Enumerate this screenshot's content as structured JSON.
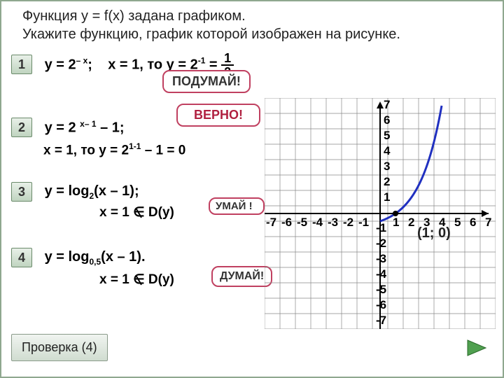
{
  "header": {
    "line1": "Функция   у = f(x)  задана графиком.",
    "line2": "Укажите функцию, график которой изображен на рисунке."
  },
  "options": {
    "o1": {
      "num": "1",
      "formula_a": "у = 2",
      "exp1": "– х",
      "sep": ";",
      "check": "х = 1, то у = 2",
      "exp2": "-1",
      "eq": " = ",
      "frac_num": "1",
      "frac_den": "2"
    },
    "o2": {
      "num": "2",
      "formula_a": "у = 2 ",
      "exp1": "х– 1",
      "tail": " – 1;",
      "check": "х = 1, то у = 2",
      "exp2": "1-1",
      "eq": " – 1 =  0"
    },
    "o3": {
      "num": "3",
      "formula_a": "y = log",
      "sub1": "2",
      "arg": "(x – 1);",
      "check": "х = 1 ",
      "notin": "∈",
      "dy": " D(y)"
    },
    "o4": {
      "num": "4",
      "formula_a": "y = log",
      "sub1": "0,5",
      "arg": "(x – 1).",
      "check": "х = 1 ",
      "notin": "∈",
      "dy": " D(y)"
    }
  },
  "callouts": {
    "think1": "ПОДУМАЙ!",
    "correct": "ВЕРНО!",
    "think2": "УМАЙ\n!",
    "think3": "ДУМАЙ!"
  },
  "button": "Проверка (4)",
  "graph": {
    "point": "(1; 0)",
    "y_ticks": [
      "7",
      "6",
      "5",
      "4",
      "3",
      "2",
      "1"
    ],
    "y_neg": [
      "-1",
      "-2",
      "-3",
      "-4",
      "-5",
      "-6",
      "-7"
    ],
    "x_neg": [
      "-7",
      "-6",
      "-5",
      "-4",
      "-3",
      "-2",
      "-1"
    ],
    "x_pos": [
      "1",
      "2",
      "3",
      "4",
      "5",
      "6",
      "7"
    ],
    "curve_color": "#2030c0",
    "grid_color": "#888888",
    "cell": 22,
    "origin_x": 165,
    "origin_y": 165
  },
  "nav_arrow_color": "#50a050"
}
